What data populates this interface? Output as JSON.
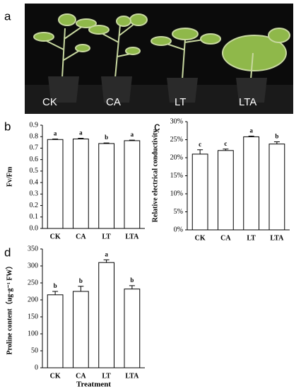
{
  "photo": {
    "panel": "a",
    "captions": [
      "CK",
      "CA",
      "LT",
      "LTA"
    ]
  },
  "chart_data": [
    {
      "type": "bar",
      "panel": "b",
      "ylabel": "Fv/Fm",
      "categories": [
        "CK",
        "CA",
        "LT",
        "LTA"
      ],
      "values": [
        0.775,
        0.78,
        0.74,
        0.765
      ],
      "errors": [
        0.005,
        0.006,
        0.005,
        0.005
      ],
      "annotations": [
        "a",
        "a",
        "b",
        "a"
      ],
      "color": "#ffffff",
      "ylim": [
        0,
        0.9
      ],
      "yticks": [
        {
          "value": 0,
          "label": "0.0"
        },
        0.1,
        0.2,
        0.3,
        0.4,
        0.5,
        0.6,
        0.7,
        0.8,
        0.9
      ]
    },
    {
      "type": "bar",
      "panel": "c",
      "ylabel": "Relative electrical conductivity",
      "categories": [
        "CK",
        "CA",
        "LT",
        "LTA"
      ],
      "values": [
        21,
        22,
        25.8,
        23.8
      ],
      "errors": [
        1.2,
        0.4,
        0.2,
        0.6
      ],
      "annotations": [
        "c",
        "c",
        "a",
        "b"
      ],
      "color": "#ffffff",
      "ylim": [
        0,
        30
      ],
      "yticks": [
        {
          "value": 0,
          "label": "0%"
        },
        {
          "value": 5,
          "label": "5%"
        },
        {
          "value": 10,
          "label": "10%"
        },
        {
          "value": 15,
          "label": "15%"
        },
        {
          "value": 20,
          "label": "20%"
        },
        {
          "value": 25,
          "label": "25%"
        },
        {
          "value": 30,
          "label": "30%"
        }
      ]
    },
    {
      "type": "bar",
      "panel": "d",
      "ylabel": "Proline content（ug·g⁻¹ FW）",
      "xlabel": "Treatment",
      "categories": [
        "CK",
        "CA",
        "LT",
        "LTA"
      ],
      "values": [
        215,
        225,
        310,
        232
      ],
      "errors": [
        10,
        15,
        8,
        10
      ],
      "annotations": [
        "b",
        "b",
        "a",
        "b"
      ],
      "color": "#ffffff",
      "ylim": [
        0,
        350
      ],
      "yticks": [
        0,
        50,
        100,
        150,
        200,
        250,
        300,
        350
      ]
    }
  ]
}
